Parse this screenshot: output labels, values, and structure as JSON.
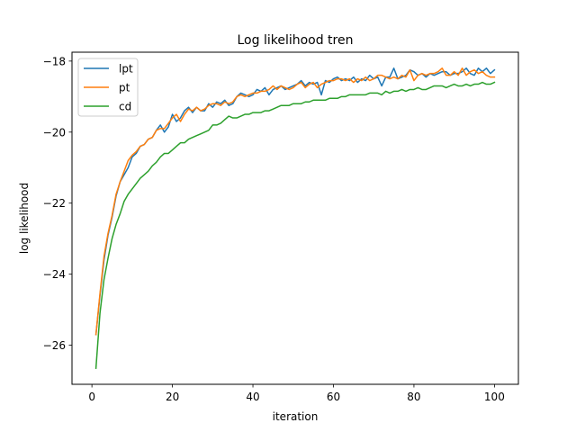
{
  "chart_data": {
    "type": "line",
    "title": "Log likelihood tren",
    "xlabel": "iteration",
    "ylabel": "log likelihood",
    "xlim": [
      -4.95,
      105.95
    ],
    "ylim": [
      -27.1,
      -17.75
    ],
    "x_ticks": [
      0,
      20,
      40,
      60,
      80,
      100
    ],
    "y_ticks": [
      -26,
      -24,
      -22,
      -20,
      -18
    ],
    "x_tick_labels": [
      "0",
      "20",
      "40",
      "60",
      "80",
      "100"
    ],
    "y_tick_labels": [
      "−26",
      "−24",
      "−22",
      "−20",
      "−18"
    ],
    "grid": false,
    "legend_position": "top-left",
    "x": [
      1,
      2,
      3,
      4,
      5,
      6,
      7,
      8,
      9,
      10,
      11,
      12,
      13,
      14,
      15,
      16,
      17,
      18,
      19,
      20,
      21,
      22,
      23,
      24,
      25,
      26,
      27,
      28,
      29,
      30,
      31,
      32,
      33,
      34,
      35,
      36,
      37,
      38,
      39,
      40,
      41,
      42,
      43,
      44,
      45,
      46,
      47,
      48,
      49,
      50,
      51,
      52,
      53,
      54,
      55,
      56,
      57,
      58,
      59,
      60,
      61,
      62,
      63,
      64,
      65,
      66,
      67,
      68,
      69,
      70,
      71,
      72,
      73,
      74,
      75,
      76,
      77,
      78,
      79,
      80,
      81,
      82,
      83,
      84,
      85,
      86,
      87,
      88,
      89,
      90,
      91,
      92,
      93,
      94,
      95,
      96,
      97,
      98,
      99,
      100
    ],
    "series": [
      {
        "name": "lpt",
        "color": "#1f77b4",
        "values": [
          -25.7,
          -24.6,
          -23.6,
          -22.9,
          -22.4,
          -21.8,
          -21.4,
          -21.2,
          -21.0,
          -20.7,
          -20.6,
          -20.4,
          -20.35,
          -20.2,
          -20.15,
          -19.95,
          -19.8,
          -20.0,
          -19.85,
          -19.5,
          -19.7,
          -19.6,
          -19.4,
          -19.3,
          -19.45,
          -19.3,
          -19.4,
          -19.4,
          -19.2,
          -19.3,
          -19.15,
          -19.2,
          -19.1,
          -19.25,
          -19.2,
          -19.0,
          -18.9,
          -18.95,
          -19.0,
          -18.95,
          -18.8,
          -18.85,
          -18.75,
          -18.95,
          -18.8,
          -18.75,
          -18.7,
          -18.8,
          -18.75,
          -18.7,
          -18.65,
          -18.55,
          -18.7,
          -18.6,
          -18.65,
          -18.6,
          -18.95,
          -18.55,
          -18.6,
          -18.5,
          -18.45,
          -18.55,
          -18.5,
          -18.55,
          -18.45,
          -18.6,
          -18.5,
          -18.55,
          -18.4,
          -18.5,
          -18.45,
          -18.7,
          -18.45,
          -18.45,
          -18.2,
          -18.5,
          -18.45,
          -18.4,
          -18.25,
          -18.3,
          -18.4,
          -18.35,
          -18.45,
          -18.35,
          -18.4,
          -18.35,
          -18.3,
          -18.3,
          -18.4,
          -18.35,
          -18.35,
          -18.3,
          -18.2,
          -18.35,
          -18.4,
          -18.2,
          -18.3,
          -18.2,
          -18.35,
          -18.25
        ]
      },
      {
        "name": "pt",
        "color": "#ff7f0e",
        "values": [
          -25.7,
          -24.55,
          -23.5,
          -22.85,
          -22.35,
          -21.75,
          -21.4,
          -21.1,
          -20.8,
          -20.65,
          -20.55,
          -20.4,
          -20.35,
          -20.2,
          -20.15,
          -19.95,
          -19.9,
          -19.9,
          -19.75,
          -19.6,
          -19.5,
          -19.7,
          -19.5,
          -19.35,
          -19.4,
          -19.3,
          -19.4,
          -19.35,
          -19.25,
          -19.2,
          -19.2,
          -19.25,
          -19.15,
          -19.2,
          -19.15,
          -19.0,
          -18.95,
          -19.0,
          -18.95,
          -18.9,
          -18.9,
          -18.85,
          -18.85,
          -18.8,
          -18.7,
          -18.8,
          -18.7,
          -18.75,
          -18.8,
          -18.75,
          -18.65,
          -18.6,
          -18.75,
          -18.65,
          -18.6,
          -18.75,
          -18.65,
          -18.6,
          -18.55,
          -18.55,
          -18.5,
          -18.5,
          -18.55,
          -18.5,
          -18.6,
          -18.5,
          -18.55,
          -18.45,
          -18.55,
          -18.5,
          -18.4,
          -18.4,
          -18.45,
          -18.5,
          -18.45,
          -18.5,
          -18.4,
          -18.45,
          -18.25,
          -18.55,
          -18.4,
          -18.35,
          -18.4,
          -18.35,
          -18.35,
          -18.3,
          -18.2,
          -18.4,
          -18.4,
          -18.3,
          -18.4,
          -18.2,
          -18.4,
          -18.3,
          -18.25,
          -18.35,
          -18.3,
          -18.4,
          -18.45,
          -18.45
        ]
      },
      {
        "name": "cd",
        "color": "#2ca02c",
        "values": [
          -26.65,
          -25.1,
          -24.15,
          -23.55,
          -23.0,
          -22.6,
          -22.3,
          -21.95,
          -21.75,
          -21.6,
          -21.45,
          -21.3,
          -21.2,
          -21.1,
          -20.95,
          -20.85,
          -20.7,
          -20.6,
          -20.6,
          -20.5,
          -20.4,
          -20.3,
          -20.3,
          -20.2,
          -20.15,
          -20.1,
          -20.05,
          -20.0,
          -19.95,
          -19.8,
          -19.8,
          -19.75,
          -19.65,
          -19.55,
          -19.6,
          -19.6,
          -19.55,
          -19.5,
          -19.5,
          -19.45,
          -19.45,
          -19.45,
          -19.4,
          -19.4,
          -19.35,
          -19.3,
          -19.25,
          -19.25,
          -19.25,
          -19.2,
          -19.2,
          -19.2,
          -19.15,
          -19.15,
          -19.1,
          -19.1,
          -19.1,
          -19.1,
          -19.05,
          -19.05,
          -19.05,
          -19.0,
          -19.0,
          -18.95,
          -18.95,
          -18.95,
          -18.95,
          -18.95,
          -18.9,
          -18.9,
          -18.9,
          -18.95,
          -18.85,
          -18.9,
          -18.85,
          -18.85,
          -18.8,
          -18.85,
          -18.8,
          -18.8,
          -18.75,
          -18.8,
          -18.8,
          -18.75,
          -18.7,
          -18.7,
          -18.7,
          -18.75,
          -18.7,
          -18.65,
          -18.7,
          -18.7,
          -18.65,
          -18.7,
          -18.65,
          -18.65,
          -18.6,
          -18.65,
          -18.65,
          -18.6
        ]
      }
    ]
  }
}
